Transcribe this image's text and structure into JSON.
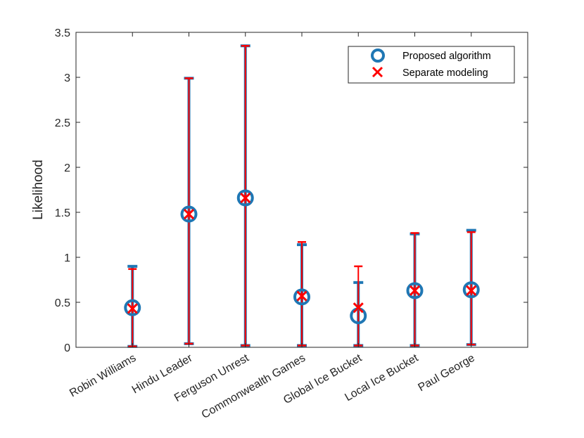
{
  "chart_data": {
    "type": "errorbar",
    "title": "",
    "xlabel": "",
    "ylabel": "Likelihood",
    "ylim": [
      0,
      3.5
    ],
    "yticks": [
      "0",
      "0.5",
      "1",
      "1.5",
      "2",
      "2.5",
      "3",
      "3.5"
    ],
    "categories": [
      "Robin Williams",
      "Hindu Leader",
      "Ferguson Unrest",
      "Commonwealth Games",
      "Global Ice Bucket",
      "Local Ice Bucket",
      "Paul George"
    ],
    "legend_position": "top-right",
    "series": [
      {
        "name": "Proposed algorithm",
        "marker": "circle",
        "color": "#1f77b4",
        "values": [
          0.44,
          1.48,
          1.66,
          0.56,
          0.35,
          0.63,
          0.64
        ],
        "lower": [
          0.01,
          0.04,
          0.02,
          0.02,
          0.02,
          0.02,
          0.03
        ],
        "upper": [
          0.9,
          2.99,
          3.35,
          1.14,
          0.72,
          1.26,
          1.3
        ]
      },
      {
        "name": "Separate modeling",
        "marker": "x",
        "color": "#ff0000",
        "values": [
          0.43,
          1.48,
          1.66,
          0.57,
          0.44,
          0.63,
          0.63
        ],
        "lower": [
          0.01,
          0.04,
          0.02,
          0.02,
          0.02,
          0.02,
          0.03
        ],
        "upper": [
          0.87,
          2.99,
          3.35,
          1.17,
          0.9,
          1.27,
          1.28
        ]
      }
    ]
  }
}
